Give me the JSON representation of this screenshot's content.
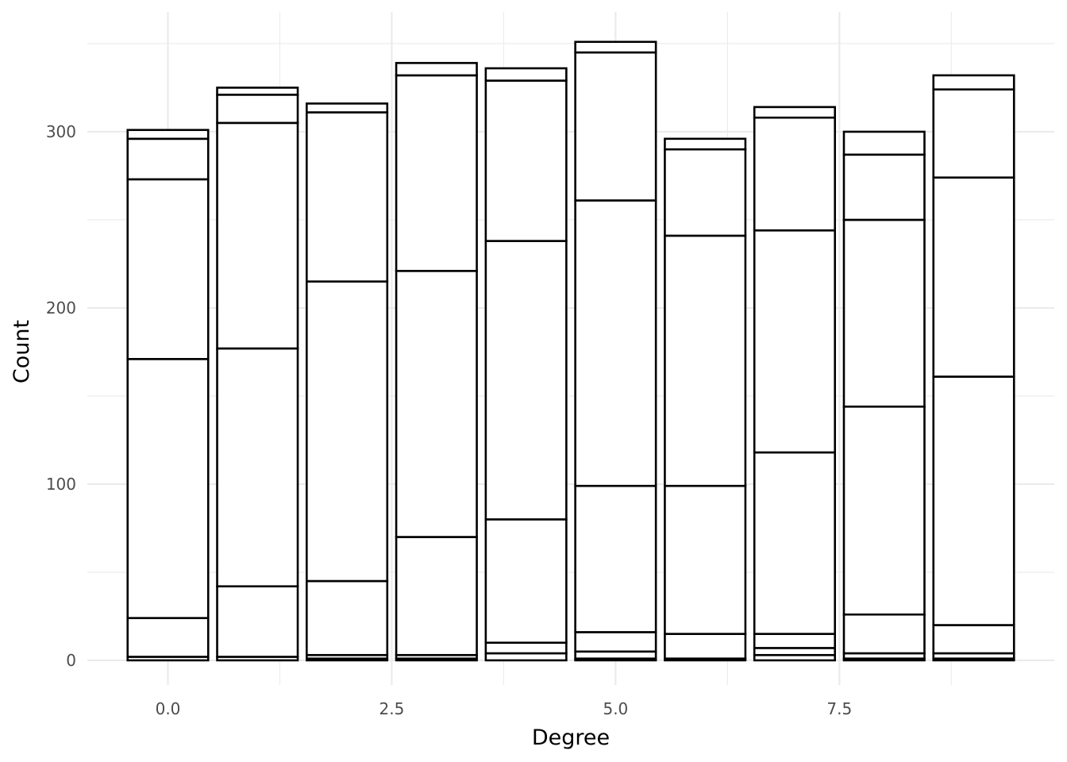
{
  "chart_data": {
    "type": "bar",
    "stacked": true,
    "title": "",
    "xlabel": "Degree",
    "ylabel": "Count",
    "xlim": [
      -0.9,
      9.9
    ],
    "ylim": [
      -14,
      368
    ],
    "x_ticks": [
      {
        "value": 0,
        "label": "0.0"
      },
      {
        "value": 2.5,
        "label": "2.5"
      },
      {
        "value": 5,
        "label": "5.0"
      },
      {
        "value": 7.5,
        "label": "7.5"
      }
    ],
    "y_ticks": [
      {
        "value": 0,
        "label": "0"
      },
      {
        "value": 100,
        "label": "100"
      },
      {
        "value": 200,
        "label": "200"
      },
      {
        "value": 300,
        "label": "300"
      }
    ],
    "bar_width": 0.9,
    "grid": true,
    "legend": "none",
    "colors": {
      "fill": "#ffffff",
      "stroke": "#000000",
      "grid": "#ebebeb"
    },
    "bars": [
      {
        "x": 0,
        "total": 301,
        "boundaries": [
          0,
          2,
          24,
          171,
          273,
          296,
          301
        ]
      },
      {
        "x": 1,
        "total": 325,
        "boundaries": [
          0,
          2,
          42,
          177,
          305,
          321,
          325
        ]
      },
      {
        "x": 2,
        "total": 316,
        "boundaries": [
          0,
          1,
          3,
          45,
          215,
          311,
          316
        ]
      },
      {
        "x": 3,
        "total": 339,
        "boundaries": [
          0,
          1,
          3,
          70,
          221,
          332,
          339
        ]
      },
      {
        "x": 4,
        "total": 336,
        "boundaries": [
          0,
          4,
          10,
          80,
          238,
          329,
          336
        ]
      },
      {
        "x": 5,
        "total": 351,
        "boundaries": [
          0,
          1,
          5,
          16,
          99,
          261,
          345,
          351
        ]
      },
      {
        "x": 6,
        "total": 296,
        "boundaries": [
          0,
          1,
          15,
          99,
          241,
          290,
          296
        ]
      },
      {
        "x": 7,
        "total": 314,
        "boundaries": [
          0,
          3,
          7,
          15,
          118,
          244,
          308,
          314
        ]
      },
      {
        "x": 8,
        "total": 300,
        "boundaries": [
          0,
          1,
          4,
          26,
          144,
          250,
          287,
          300
        ]
      },
      {
        "x": 9,
        "total": 332,
        "boundaries": [
          0,
          1,
          4,
          20,
          161,
          274,
          324,
          332
        ]
      }
    ]
  }
}
